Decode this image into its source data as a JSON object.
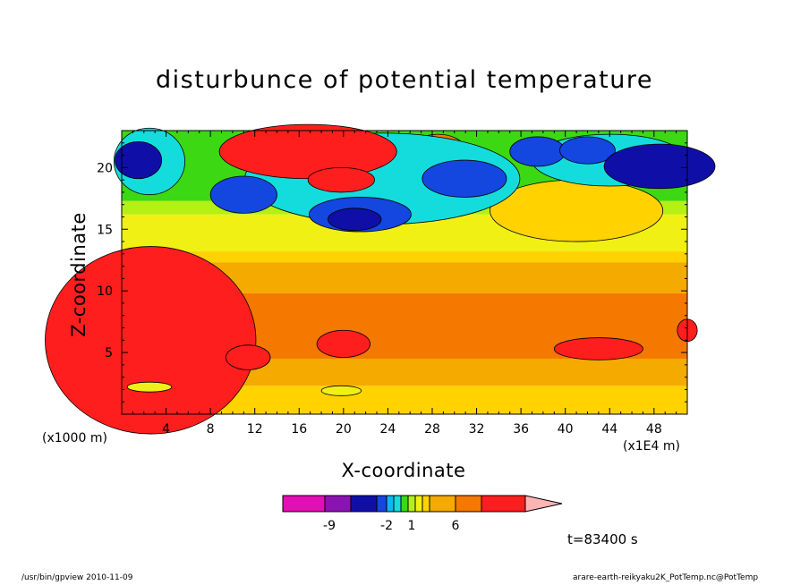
{
  "chart_data": {
    "type": "heatmap",
    "title": "disturbunce of potential temperature",
    "xlabel": "X-coordinate",
    "ylabel": "Z-coordinate",
    "x_unit": "(x1000 m)",
    "x_scale": "(x1E4 m)",
    "xlim": [
      0,
      51
    ],
    "ylim": [
      0,
      23
    ],
    "x_ticks": [
      "4",
      "8",
      "12",
      "16",
      "20",
      "24",
      "28",
      "32",
      "36",
      "40",
      "44",
      "48"
    ],
    "y_ticks": [
      "5",
      "10",
      "15",
      "20"
    ],
    "colorbar": {
      "colors": [
        "#e20fb4",
        "#8a14b2",
        "#0f0fa8",
        "#1446e0",
        "#14b4f0",
        "#14dcdc",
        "#3cd814",
        "#b4f014",
        "#f0f014",
        "#ffd200",
        "#f5aa00",
        "#f57800",
        "#ff1e1e",
        "#ff7878",
        "#ffb4b4"
      ],
      "tick_labels": [
        "-9",
        "-2",
        "1",
        "6"
      ]
    },
    "time_label": "t=83400 s"
  },
  "footer": {
    "left": "/usr/bin/gpview   2010-11-09",
    "right": "arare-earth-reikyaku2K_PotTemp.nc@PotTemp"
  }
}
